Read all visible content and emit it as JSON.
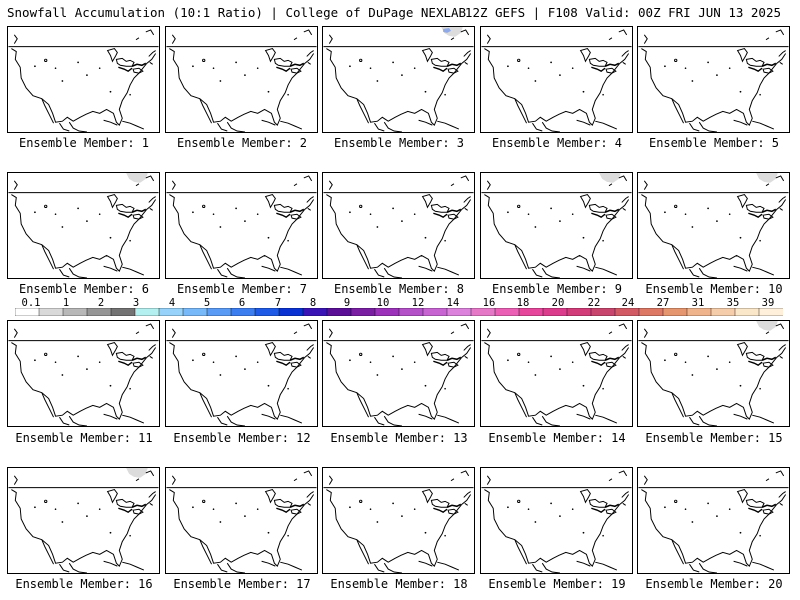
{
  "header": {
    "left": "Snowfall Accumulation (10:1 Ratio) | College of DuPage NEXLAB",
    "right": "12Z GEFS | F108 Valid: 00Z FRI JUN 13 2025"
  },
  "panels": [
    {
      "label": "Ensemble Member: 1",
      "snow_regions": []
    },
    {
      "label": "Ensemble Member: 2",
      "snow_regions": []
    },
    {
      "label": "Ensemble Member: 3",
      "snow_regions": [
        "northern-quebec"
      ]
    },
    {
      "label": "Ensemble Member: 4",
      "snow_regions": []
    },
    {
      "label": "Ensemble Member: 5",
      "snow_regions": []
    },
    {
      "label": "Ensemble Member: 6",
      "snow_regions": [
        "northern-quebec"
      ]
    },
    {
      "label": "Ensemble Member: 7",
      "snow_regions": []
    },
    {
      "label": "Ensemble Member: 8",
      "snow_regions": []
    },
    {
      "label": "Ensemble Member: 9",
      "snow_regions": [
        "northern-quebec"
      ]
    },
    {
      "label": "Ensemble Member: 10",
      "snow_regions": [
        "northern-quebec"
      ]
    },
    {
      "label": "Ensemble Member: 11",
      "snow_regions": []
    },
    {
      "label": "Ensemble Member: 12",
      "snow_regions": []
    },
    {
      "label": "Ensemble Member: 13",
      "snow_regions": []
    },
    {
      "label": "Ensemble Member: 14",
      "snow_regions": []
    },
    {
      "label": "Ensemble Member: 15",
      "snow_regions": [
        "northern-quebec"
      ]
    },
    {
      "label": "Ensemble Member: 16",
      "snow_regions": [
        "northern-quebec"
      ]
    },
    {
      "label": "Ensemble Member: 17",
      "snow_regions": []
    },
    {
      "label": "Ensemble Member: 18",
      "snow_regions": []
    },
    {
      "label": "Ensemble Member: 19",
      "snow_regions": []
    },
    {
      "label": "Ensemble Member: 20",
      "snow_regions": []
    }
  ],
  "colorbar": {
    "labels": [
      "0.1",
      "1",
      "2",
      "3",
      "4",
      "5",
      "6",
      "7",
      "8",
      "9",
      "10",
      "12",
      "14",
      "16",
      "18",
      "20",
      "22",
      "24",
      "27",
      "31",
      "35",
      "39"
    ],
    "colors": [
      "#ffffff",
      "#d9d9d9",
      "#b8b8b8",
      "#969696",
      "#737373",
      "#b4f0f0",
      "#96d2fa",
      "#78b9fa",
      "#5a9bf5",
      "#3c7df0",
      "#1e5ae6",
      "#0a32d2",
      "#3a14b4",
      "#5a0f96",
      "#7a1fa2",
      "#9b32b9",
      "#b450c8",
      "#c864d2",
      "#dc82dc",
      "#e678c8",
      "#eb5fb4",
      "#e6469b",
      "#dc3c8c",
      "#d23c78",
      "#c8466e",
      "#d25a64",
      "#dc7864",
      "#e6966e",
      "#f0b48c",
      "#f5cdaa",
      "#fae6c8",
      "#fff0dc"
    ],
    "snow_color_light": "#dcdcdc",
    "snow_color_dark": "#8fa8e6"
  }
}
